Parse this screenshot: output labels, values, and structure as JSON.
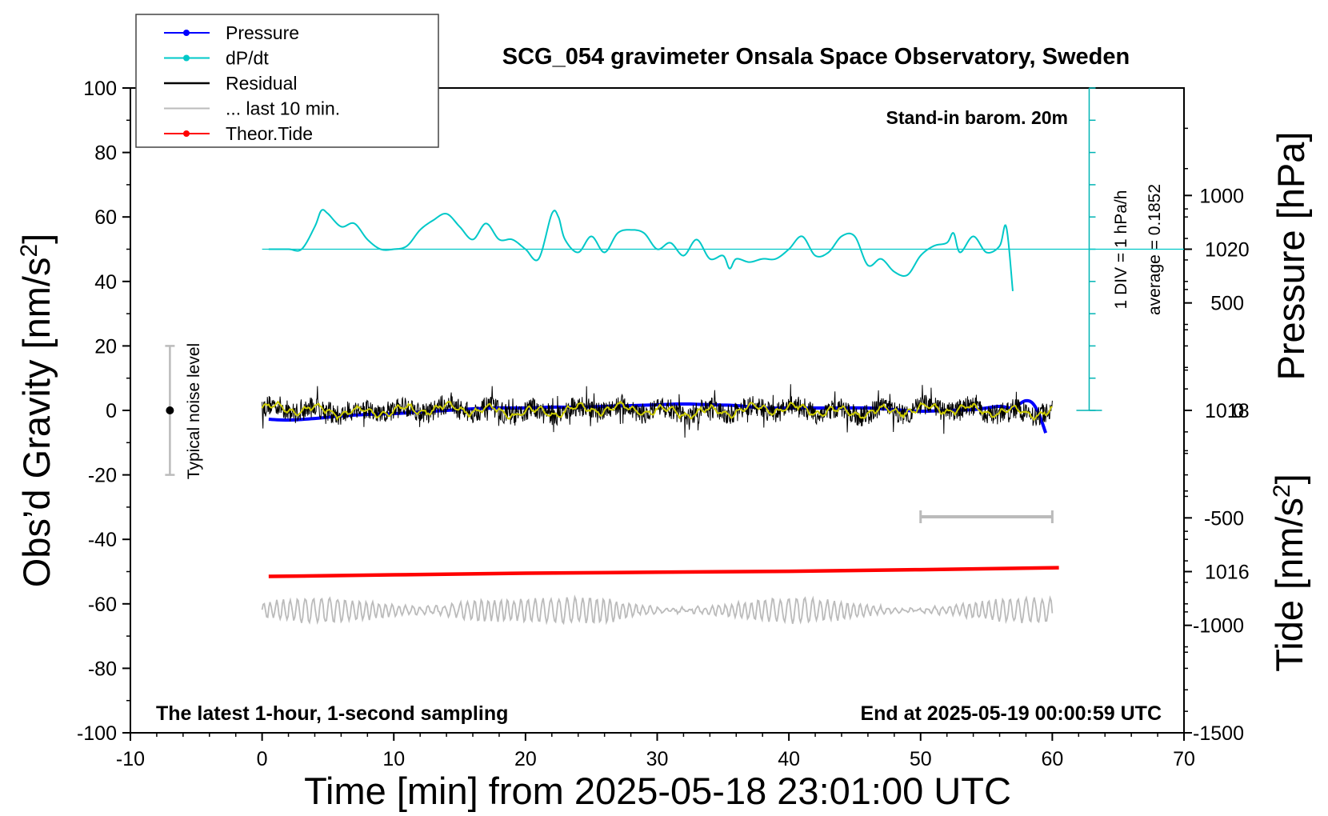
{
  "chart_data": {
    "type": "line",
    "title": "SCG_054 gravimeter Onsala Space Observatory, Sweden",
    "xlabel": "Time [min] from 2025-05-18 23:01:00 UTC",
    "ylabel_left": "Obs’d Gravity [nm/s",
    "ylabel_left_sup": "2",
    "ylabel_left_end": "]",
    "ylabel_pressure": "Pressure [hPa]",
    "ylabel_tide": "Tide [nm/s",
    "ylabel_tide_sup": "2",
    "ylabel_tide_end": "]",
    "xlim": [
      -10,
      70
    ],
    "ylim": [
      -100,
      100
    ],
    "pressure_ylim": [
      1014,
      1022
    ],
    "tide_ylim": [
      -1500,
      1500
    ],
    "x_ticks": [
      -10,
      0,
      10,
      20,
      30,
      40,
      50,
      60,
      70
    ],
    "y_ticks": [
      100,
      80,
      60,
      40,
      20,
      0,
      -20,
      -40,
      -60,
      -80,
      -100
    ],
    "pressure_ticks": [
      1020,
      1018,
      1016
    ],
    "tide_ticks": [
      1000,
      500,
      0,
      -500,
      -1000,
      -1500
    ],
    "legend": [
      {
        "label": "Pressure",
        "color": "#0000ff",
        "marker": true
      },
      {
        "label": "dP/dt",
        "color": "#00c8c8",
        "marker": true
      },
      {
        "label": "Residual",
        "color": "#000000",
        "marker": false
      },
      {
        "label": "... last 10 min.",
        "color": "#bbbbbb",
        "marker": false
      },
      {
        "label": "Theor.Tide",
        "color": "#ff0000",
        "marker": true
      }
    ],
    "legend_position": "top-left",
    "annotations": {
      "barometer": "Stand-in barom. 20m",
      "div_label": "1 DIV = 1 hPa/h",
      "average_label": "average = 0.1852",
      "noise_label": "Typical noise level",
      "sampling_label": "The latest 1-hour, 1-second sampling",
      "end_label": "End at 2025-05-19 00:00:59 UTC"
    },
    "noise_bar": {
      "x": -7,
      "center": 0,
      "low": -20,
      "high": 20
    },
    "last10_range": [
      50,
      60
    ],
    "last10_scale_level": -33,
    "dpdt_baseline": 50,
    "dpdt_axis_range": [
      0,
      100
    ],
    "series": [
      {
        "name": "Pressure",
        "units": "hPa",
        "color": "#0000ff",
        "x": [
          0.5,
          2,
          4,
          6,
          8,
          10,
          12,
          14,
          16,
          18,
          20,
          22,
          24,
          26,
          28,
          30,
          32,
          34,
          36,
          38,
          40,
          42,
          44,
          46,
          48,
          50,
          52,
          54,
          55,
          56,
          57,
          57.5,
          58,
          58.5,
          59,
          59.5
        ],
        "y": [
          1017.89,
          1017.88,
          1017.9,
          1017.93,
          1017.95,
          1017.96,
          1017.98,
          1018.0,
          1018.02,
          1018.03,
          1018.03,
          1018.04,
          1018.04,
          1018.05,
          1018.06,
          1018.07,
          1018.08,
          1018.07,
          1018.06,
          1018.03,
          1018.03,
          1018.03,
          1018.03,
          1018.03,
          1018.01,
          1017.99,
          1018.0,
          1018.01,
          1018.03,
          1018.05,
          1018.03,
          1018.08,
          1018.12,
          1018.09,
          1017.95,
          1017.72
        ]
      },
      {
        "name": "dP/dt",
        "units": "nm/s2 axis (1 DIV = 1 hPa/h)",
        "color": "#00c8c8",
        "x": [
          0.5,
          2,
          3,
          4,
          4.5,
          5,
          6,
          7,
          8,
          9,
          10,
          11,
          12,
          13,
          14,
          15,
          16,
          17,
          18,
          19,
          20,
          21,
          22,
          22.5,
          23,
          24,
          25,
          26,
          27,
          28,
          29,
          30,
          31,
          32,
          33,
          34,
          35,
          35.5,
          36,
          37,
          38,
          39,
          40,
          41,
          42,
          43,
          44,
          45,
          46,
          47,
          48,
          49,
          50,
          51,
          52,
          52.5,
          53,
          54,
          55,
          56,
          56.5,
          57
        ],
        "y": [
          50,
          50,
          50,
          57,
          62,
          61,
          57,
          58,
          53,
          50,
          50,
          51,
          56,
          59,
          61,
          57,
          53,
          58,
          53,
          53,
          50,
          47,
          61,
          60,
          53,
          49,
          54,
          49,
          55,
          56,
          55,
          50,
          52,
          48,
          53,
          47,
          48,
          44,
          47,
          46,
          47,
          47,
          50,
          54,
          48,
          49,
          54,
          54,
          45,
          47,
          43,
          42,
          48,
          51,
          52,
          55,
          49,
          54,
          49,
          51,
          57,
          37
        ]
      },
      {
        "name": "Residual",
        "units": "nm/s2",
        "color": "#000000",
        "x_range": [
          0,
          60
        ],
        "level": 0,
        "spread": [
          -6,
          6
        ]
      },
      {
        "name": "Residual (smoothed)",
        "units": "nm/s2",
        "color": "#cccc00",
        "x_range": [
          0,
          60
        ],
        "level": 0
      },
      {
        "name": "... last 10 min.",
        "units": "nm/s2 (offset)",
        "color": "#bbbbbb",
        "x_range": [
          0,
          60
        ],
        "level": -62,
        "spread": [
          -70,
          -55
        ]
      },
      {
        "name": "Theor.Tide",
        "units": "nm/s2",
        "color": "#ff0000",
        "x": [
          0.5,
          10,
          20,
          30,
          40,
          50,
          60.5
        ],
        "y": [
          -51.5,
          -51,
          -50.5,
          -50.2,
          -49.9,
          -49.4,
          -48.8
        ]
      }
    ]
  }
}
